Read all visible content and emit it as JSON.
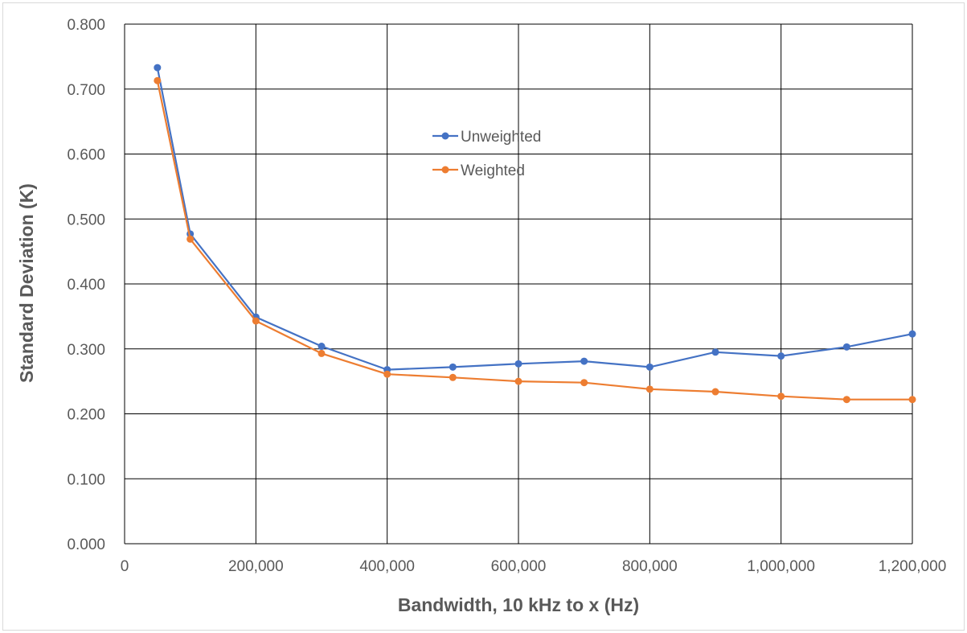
{
  "chart_data": {
    "type": "line",
    "title": "",
    "xlabel": "Bandwidth, 10 kHz to x (Hz)",
    "ylabel": "Standard Deviation (K)",
    "xlim": [
      0,
      1200000
    ],
    "ylim": [
      0,
      0.8
    ],
    "x_ticks": [
      "0",
      "200,000",
      "400,000",
      "600,000",
      "800,000",
      "1,000,000",
      "1,200,000"
    ],
    "x_tick_values": [
      0,
      200000,
      400000,
      600000,
      800000,
      1000000,
      1200000
    ],
    "y_ticks": [
      "0.000",
      "0.100",
      "0.200",
      "0.300",
      "0.400",
      "0.500",
      "0.600",
      "0.700",
      "0.800"
    ],
    "y_tick_values": [
      0,
      0.1,
      0.2,
      0.3,
      0.4,
      0.5,
      0.6,
      0.7,
      0.8
    ],
    "x_grid_values": [
      0,
      200000,
      400000,
      600000,
      800000,
      1000000,
      1200000
    ],
    "grid": true,
    "legend_placement": "upper-center",
    "x": [
      50000,
      100000,
      200000,
      300000,
      400000,
      500000,
      600000,
      700000,
      800000,
      900000,
      1000000,
      1100000,
      1200000
    ],
    "series": [
      {
        "name": "Unweighted",
        "color": "#4472c4",
        "values": [
          0.733,
          0.477,
          0.349,
          0.304,
          0.268,
          0.272,
          0.277,
          0.281,
          0.272,
          0.295,
          0.289,
          0.303,
          0.323
        ]
      },
      {
        "name": "Weighted",
        "color": "#ed7d31",
        "values": [
          0.713,
          0.469,
          0.343,
          0.293,
          0.261,
          0.256,
          0.25,
          0.248,
          0.238,
          0.234,
          0.227,
          0.222,
          0.222
        ]
      }
    ]
  }
}
